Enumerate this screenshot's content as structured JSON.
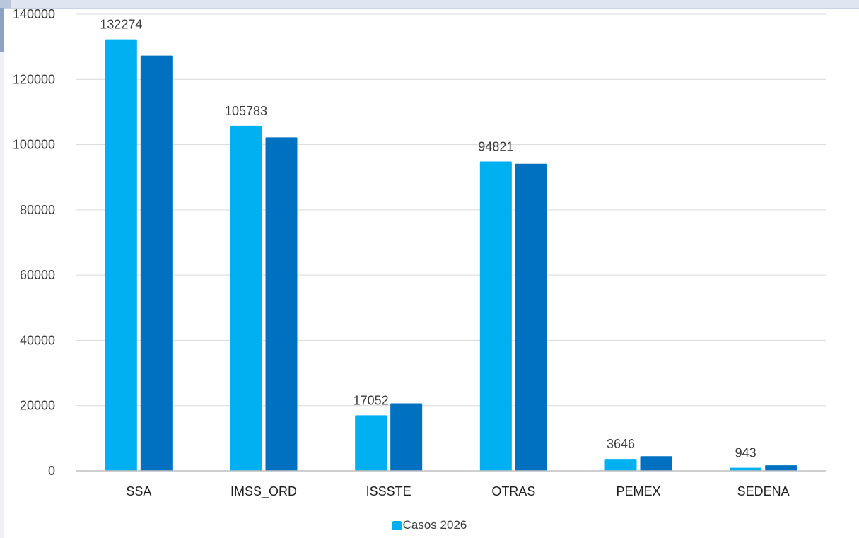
{
  "chart_data": {
    "type": "bar",
    "categories": [
      "SSA",
      "IMSS_ORD",
      "ISSSTE",
      "OTRAS",
      "PEMEX",
      "SEDENA"
    ],
    "series": [
      {
        "name": "Casos 2026",
        "values": [
          132274,
          105783,
          17052,
          94821,
          3646,
          943
        ],
        "show_labels": true
      },
      {
        "values": [
          127300,
          102200,
          20700,
          94100,
          4500,
          1700
        ],
        "show_labels": false
      }
    ],
    "ylim": [
      0,
      140000
    ],
    "yticks": [
      0,
      20000,
      40000,
      60000,
      80000,
      100000,
      120000,
      140000
    ],
    "title": "",
    "xlabel": "",
    "ylabel": "",
    "grid": true,
    "legend": "bottom"
  },
  "colors": {
    "series_0": "#00b0f0",
    "series_1": "#0070c0",
    "grid": "#d9d9d9",
    "axis": "#bfbfbf"
  }
}
